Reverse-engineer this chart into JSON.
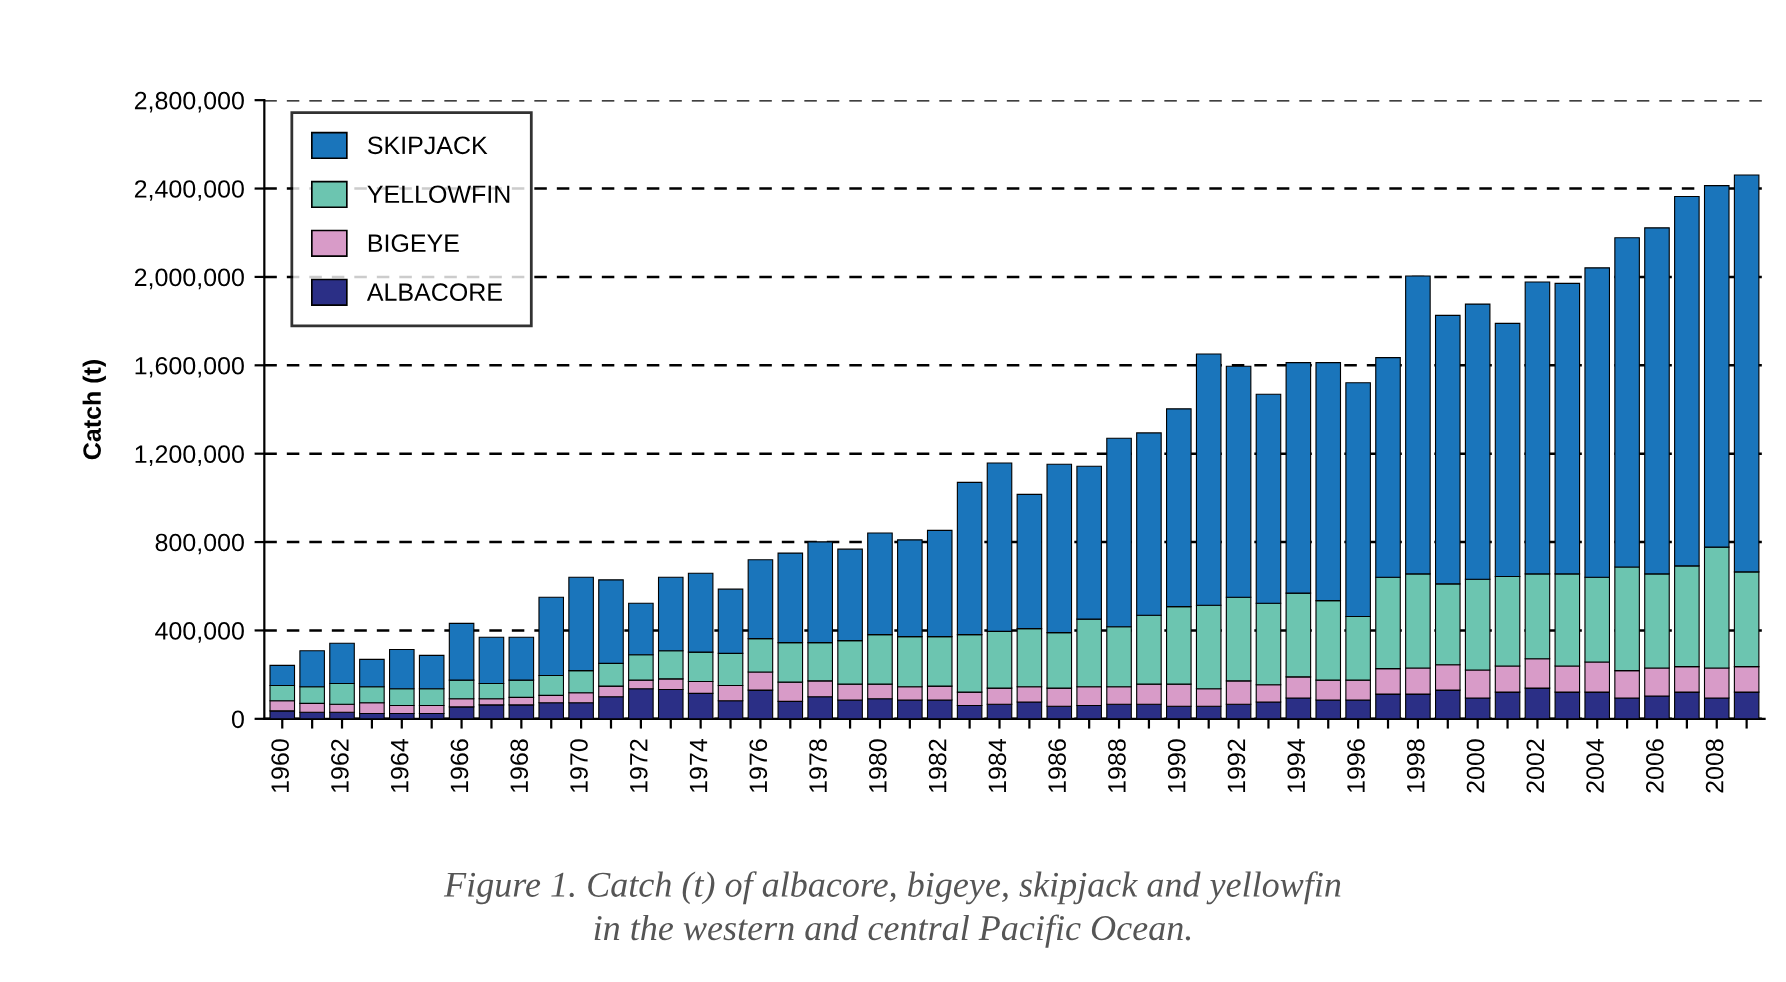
{
  "chart_data": {
    "type": "bar",
    "stacked": true,
    "ylabel": "Catch (t)",
    "categories": [
      "1960",
      null,
      "1962",
      null,
      "1964",
      null,
      "1966",
      null,
      "1968",
      null,
      "1970",
      null,
      "1972",
      null,
      "1974",
      null,
      "1976",
      null,
      "1978",
      null,
      "1980",
      null,
      "1982",
      null,
      "1984",
      null,
      "1986",
      null,
      "1988",
      null,
      "1990",
      null,
      "1992",
      null,
      "1994",
      null,
      "1996",
      null,
      "1998",
      null,
      "2000",
      null,
      "2002",
      null,
      "2004",
      null,
      "2006",
      null,
      "2008",
      null
    ],
    "series": [
      {
        "name": "ALBACORE",
        "color": "#2b2f86",
        "values": [
          36000,
          30000,
          30000,
          24000,
          24000,
          24000,
          54000,
          63000,
          63000,
          73000,
          73000,
          100000,
          136000,
          133000,
          115000,
          82000,
          130000,
          79000,
          100000,
          85000,
          91000,
          85000,
          85000,
          60000,
          66000,
          76000,
          57000,
          60000,
          66000,
          66000,
          57000,
          57000,
          66000,
          76000,
          94000,
          85000,
          85000,
          112000,
          112000,
          130000,
          94000,
          121000,
          139000,
          121000,
          121000,
          94000,
          103000,
          121000,
          94000,
          121000
        ]
      },
      {
        "name": "BIGEYE",
        "color": "#d89bc8",
        "values": [
          46000,
          40000,
          36000,
          49000,
          36000,
          36000,
          37000,
          28000,
          34000,
          33000,
          45000,
          48000,
          39000,
          48000,
          54000,
          69000,
          82000,
          87000,
          72000,
          72000,
          66000,
          60000,
          63000,
          61000,
          73000,
          69000,
          82000,
          85000,
          79000,
          91000,
          100000,
          79000,
          106000,
          78000,
          96000,
          90000,
          90000,
          115000,
          118000,
          115000,
          127000,
          118000,
          133000,
          118000,
          136000,
          124000,
          127000,
          115000,
          136000,
          115000
        ]
      },
      {
        "name": "YELLOWFIN",
        "color": "#6cc5b0",
        "values": [
          69000,
          75000,
          94000,
          72000,
          76000,
          76000,
          84000,
          69000,
          78000,
          90000,
          100000,
          103000,
          115000,
          127000,
          133000,
          145000,
          151000,
          179000,
          173000,
          197000,
          224000,
          227000,
          224000,
          260000,
          257000,
          263000,
          251000,
          306000,
          272000,
          312000,
          351000,
          378000,
          378000,
          369000,
          379000,
          360000,
          288000,
          414000,
          426000,
          366000,
          411000,
          405000,
          384000,
          417000,
          384000,
          469000,
          426000,
          456000,
          547000,
          429000
        ]
      },
      {
        "name": "SKIPJACK",
        "color": "#1a75bb",
        "values": [
          91000,
          163000,
          182000,
          124000,
          178000,
          151000,
          257000,
          209000,
          194000,
          354000,
          423000,
          378000,
          233000,
          333000,
          357000,
          291000,
          357000,
          405000,
          456000,
          414000,
          460000,
          438000,
          481000,
          689000,
          762000,
          608000,
          762000,
          692000,
          853000,
          825000,
          895000,
          1137000,
          1046000,
          946000,
          1043000,
          1077000,
          1058000,
          994000,
          1348000,
          1215000,
          1245000,
          1146000,
          1321000,
          1315000,
          1400000,
          1490000,
          1566000,
          1672000,
          1636000,
          1796000
        ]
      }
    ],
    "ylim": [
      0,
      2800000
    ],
    "yticks": [
      {
        "value": 0,
        "label": "0"
      },
      {
        "value": 400000,
        "label": "400,000"
      },
      {
        "value": 800000,
        "label": "800,000"
      },
      {
        "value": 1200000,
        "label": "1,200,000"
      },
      {
        "value": 1600000,
        "label": "1,600,000"
      },
      {
        "value": 2000000,
        "label": "2,000,000"
      },
      {
        "value": 2400000,
        "label": "2,400,000"
      },
      {
        "value": 2800000,
        "label": "2,800,000"
      }
    ],
    "grid": "y",
    "legend": "top left",
    "annotations": [
      "Figure 1. Catch (t) of albacore, bigeye, skipjack and yellowfin\nin the western and central Pacific Ocean."
    ]
  }
}
